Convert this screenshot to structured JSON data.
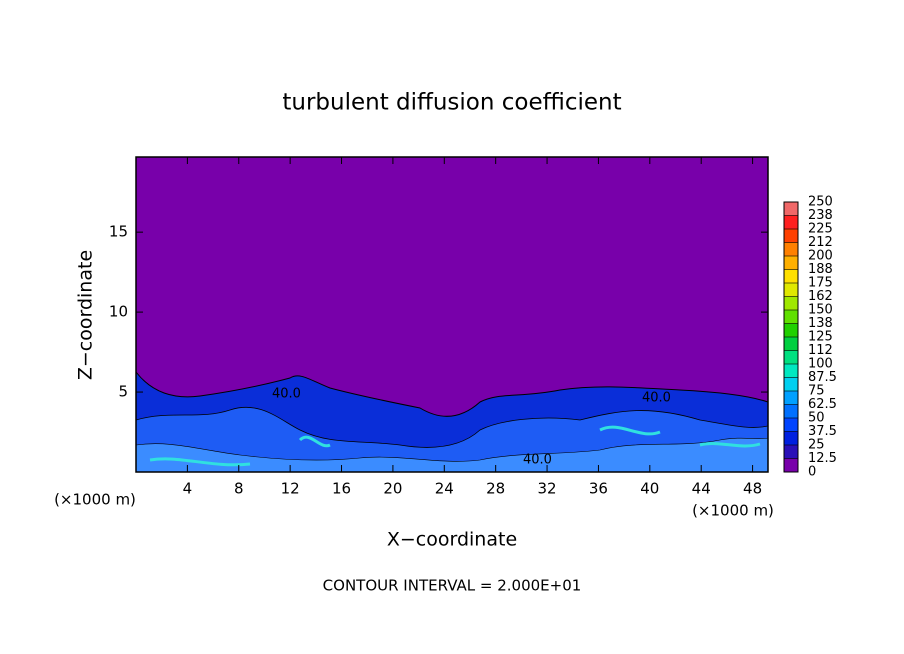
{
  "chart_data": {
    "type": "contour",
    "title": "turbulent diffusion coefficient",
    "x_label": "X−coordinate",
    "y_label": "Z−coordinate",
    "x_unit_left": "(×1000 m)",
    "x_unit_right": "(×1000 m)",
    "footer": "CONTOUR INTERVAL = 2.000E+01",
    "contour_labels": [
      "40.0",
      "40.0",
      "40.0"
    ],
    "background_color": "#7800aa",
    "xlim": [
      0,
      49.2
    ],
    "xticks": [
      4,
      8,
      12,
      16,
      20,
      24,
      28,
      32,
      36,
      40,
      44,
      48
    ],
    "ylim": [
      0,
      19.7
    ],
    "yticks": [
      5,
      10,
      15
    ],
    "colorbar": {
      "levels": [
        0,
        12.5,
        25,
        37.5,
        50,
        62.5,
        75,
        87.5,
        100,
        {
          "value": 112.5,
          "label": "112"
        },
        125,
        {
          "value": 137.5,
          "label": "138"
        },
        150,
        {
          "value": 162.5,
          "label": "162"
        },
        175,
        {
          "value": 187.5,
          "label": "188"
        },
        200,
        {
          "value": 212.5,
          "label": "212"
        },
        225,
        {
          "value": 237.5,
          "label": "238"
        },
        250
      ],
      "colors": [
        "#7800aa",
        "#2a10b8",
        "#0020e0",
        "#0044ff",
        "#0070ff",
        "#00a0ff",
        "#00d0f0",
        "#00e8c0",
        "#00e080",
        "#00d040",
        "#20d000",
        "#60e000",
        "#a0e800",
        "#e0e800",
        "#ffe000",
        "#ffb000",
        "#ff8000",
        "#ff4000",
        "#ff2020",
        "#f06868"
      ]
    }
  }
}
